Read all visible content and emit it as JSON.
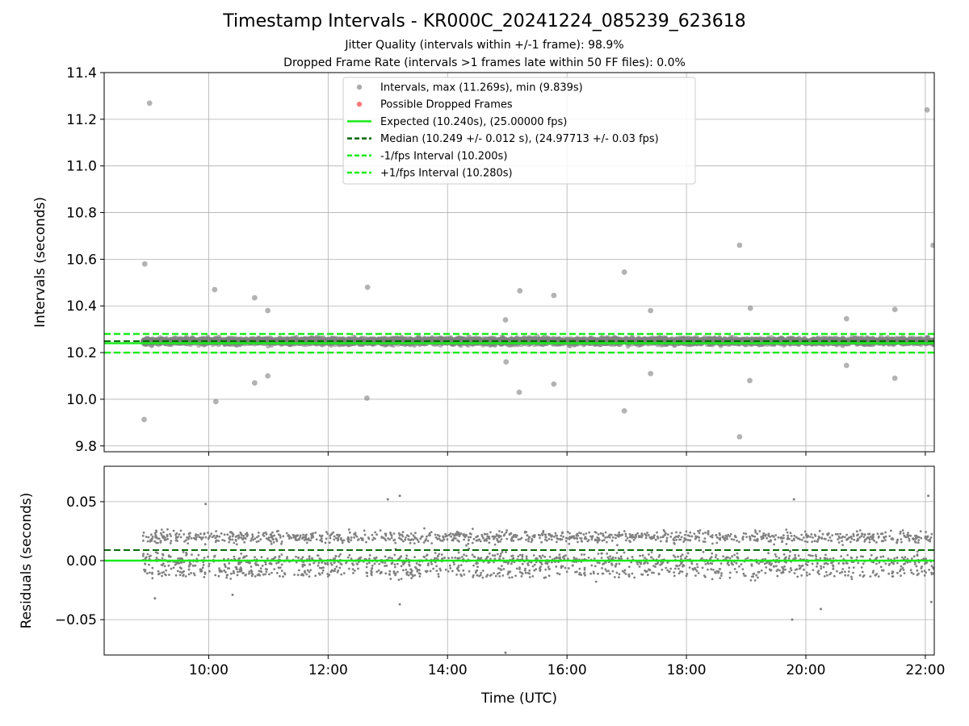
{
  "titles": {
    "main": "Timestamp Intervals - KR000C_20241224_085239_623618",
    "subtitle1": "Jitter Quality (intervals within +/-1 frame): 98.9%",
    "subtitle2": "Dropped Frame Rate (intervals >1 frames late within 50 FF files): 0.0%"
  },
  "colors": {
    "points": "#808080",
    "dropped": "#ff3333",
    "expected": "#1aeb1a",
    "median": "#006400",
    "interval_lines": "#1aeb1a",
    "grid": "#b0b0b0"
  },
  "chart_data": [
    {
      "type": "scatter",
      "panel": "top",
      "xlabel": "",
      "ylabel": "Intervals (seconds)",
      "xlim": [
        8.25,
        22.15
      ],
      "ylim": [
        9.775,
        11.4
      ],
      "x_tick_values": [
        10,
        12,
        14,
        16,
        18,
        20,
        22
      ],
      "y_ticks": [
        9.8,
        10.0,
        10.2,
        10.4,
        10.6,
        10.8,
        11.0,
        11.2,
        11.4
      ],
      "y_tick_labels": [
        "9.8",
        "10.0",
        "10.2",
        "10.4",
        "10.6",
        "10.8",
        "11.0",
        "11.2",
        "11.4"
      ],
      "grid": true,
      "legend_position": "top-center",
      "legend": [
        "Intervals, max (11.269s), min (9.839s)",
        "Possible Dropped Frames",
        "Expected (10.240s), (25.00000 fps)",
        "Median (10.249 +/- 0.012 s), (24.97713 +/- 0.03 fps)",
        "-1/fps Interval (10.200s)",
        "+1/fps Interval (10.280s)"
      ],
      "reference_lines": {
        "expected": 10.24,
        "median": 10.249,
        "minus_1_fps": 10.2,
        "plus_1_fps": 10.28
      },
      "dense_band": {
        "x_range": [
          8.9,
          22.15
        ],
        "y_range": [
          10.22,
          10.28
        ],
        "description_count": 4700
      },
      "outliers": [
        {
          "x": 9.01,
          "y": 11.269
        },
        {
          "x": 8.93,
          "y": 10.58
        },
        {
          "x": 8.92,
          "y": 9.913
        },
        {
          "x": 10.1,
          "y": 10.47
        },
        {
          "x": 10.12,
          "y": 9.99
        },
        {
          "x": 10.77,
          "y": 10.435
        },
        {
          "x": 10.77,
          "y": 10.07
        },
        {
          "x": 10.99,
          "y": 10.38
        },
        {
          "x": 10.99,
          "y": 10.1
        },
        {
          "x": 12.66,
          "y": 10.48
        },
        {
          "x": 12.65,
          "y": 10.005
        },
        {
          "x": 14.97,
          "y": 10.34
        },
        {
          "x": 14.98,
          "y": 10.16
        },
        {
          "x": 15.21,
          "y": 10.465
        },
        {
          "x": 15.2,
          "y": 10.03
        },
        {
          "x": 15.78,
          "y": 10.445
        },
        {
          "x": 15.78,
          "y": 10.065
        },
        {
          "x": 16.96,
          "y": 10.545
        },
        {
          "x": 16.96,
          "y": 9.95
        },
        {
          "x": 17.4,
          "y": 10.38
        },
        {
          "x": 17.4,
          "y": 10.11
        },
        {
          "x": 18.89,
          "y": 10.66
        },
        {
          "x": 18.89,
          "y": 9.839
        },
        {
          "x": 19.07,
          "y": 10.39
        },
        {
          "x": 19.06,
          "y": 10.08
        },
        {
          "x": 20.68,
          "y": 10.345
        },
        {
          "x": 20.68,
          "y": 10.145
        },
        {
          "x": 21.49,
          "y": 10.385
        },
        {
          "x": 21.49,
          "y": 10.09
        },
        {
          "x": 22.03,
          "y": 11.24
        },
        {
          "x": 22.13,
          "y": 10.66
        }
      ]
    },
    {
      "type": "scatter",
      "panel": "bottom",
      "xlabel": "Time (UTC)",
      "ylabel": "Residuals (seconds)",
      "xlim": [
        8.25,
        22.15
      ],
      "ylim": [
        -0.08,
        0.08
      ],
      "x_ticks": [
        10,
        12,
        14,
        16,
        18,
        20,
        22
      ],
      "x_tick_labels": [
        "10:00",
        "12:00",
        "14:00",
        "16:00",
        "18:00",
        "20:00",
        "22:00"
      ],
      "y_ticks": [
        -0.05,
        0.0,
        0.05
      ],
      "y_tick_labels": [
        "−0.05",
        "0.00",
        "0.05"
      ],
      "grid": true,
      "reference_lines": {
        "zero": 0.0,
        "median_residual": 0.009
      },
      "clusters": [
        {
          "center": 0.02,
          "spread": 0.004
        },
        {
          "center": 0.0,
          "spread": 0.005
        },
        {
          "center": -0.01,
          "spread": 0.004
        }
      ],
      "x_range": [
        8.9,
        22.15
      ],
      "description_count": 2400,
      "notable_points": [
        {
          "x": 9.95,
          "y": 0.048
        },
        {
          "x": 13.0,
          "y": 0.052
        },
        {
          "x": 13.2,
          "y": 0.055
        },
        {
          "x": 19.8,
          "y": 0.052
        },
        {
          "x": 22.05,
          "y": 0.055
        },
        {
          "x": 14.97,
          "y": -0.078
        },
        {
          "x": 19.77,
          "y": -0.05
        },
        {
          "x": 20.25,
          "y": -0.041
        },
        {
          "x": 13.2,
          "y": -0.037
        },
        {
          "x": 22.1,
          "y": -0.035
        },
        {
          "x": 9.1,
          "y": -0.032
        },
        {
          "x": 10.4,
          "y": -0.029
        }
      ]
    }
  ]
}
